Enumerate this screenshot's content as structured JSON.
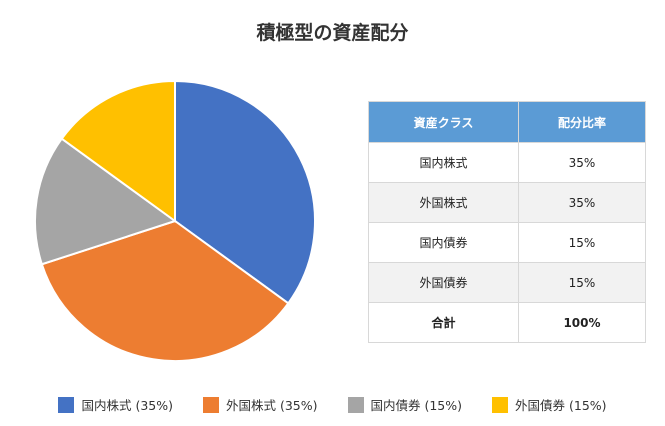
{
  "title": "積極型の資産配分",
  "table": {
    "headers": [
      "資産クラス",
      "配分比率"
    ],
    "rows": [
      [
        "国内株式",
        "35%"
      ],
      [
        "外国株式",
        "35%"
      ],
      [
        "国内債券",
        "15%"
      ],
      [
        "外国債券",
        "15%"
      ]
    ],
    "total": [
      "合計",
      "100%"
    ]
  },
  "legend": [
    "国内株式 (35%)",
    "外国株式 (35%)",
    "国内債券 (15%)",
    "外国債券 (15%)"
  ],
  "chart_data": {
    "type": "pie",
    "title": "積極型の資産配分",
    "categories": [
      "国内株式",
      "外国株式",
      "国内債券",
      "外国債券"
    ],
    "values": [
      35,
      35,
      15,
      15
    ],
    "colors": [
      "#4472c4",
      "#ed7d31",
      "#a5a5a5",
      "#ffc000"
    ],
    "legend_position": "bottom",
    "start_angle": "12 o'clock, clockwise"
  }
}
